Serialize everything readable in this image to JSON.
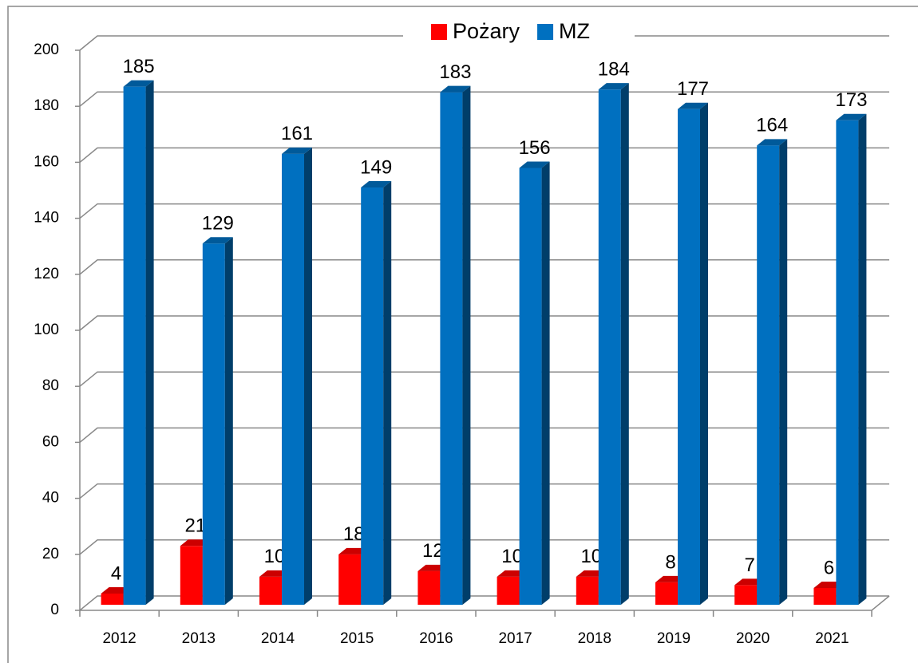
{
  "chart_data": {
    "type": "bar3d",
    "categories": [
      "2012",
      "2013",
      "2014",
      "2015",
      "2016",
      "2017",
      "2018",
      "2019",
      "2020",
      "2021"
    ],
    "series": [
      {
        "name": "Pożary",
        "color": "#ff0000",
        "values": [
          4,
          21,
          10,
          18,
          12,
          10,
          10,
          8,
          7,
          6
        ]
      },
      {
        "name": "MZ",
        "color": "#0070c0",
        "values": [
          185,
          129,
          161,
          149,
          183,
          156,
          184,
          177,
          164,
          173
        ]
      }
    ],
    "ylim": [
      0,
      200
    ],
    "yticks": [
      0,
      20,
      40,
      60,
      80,
      100,
      120,
      140,
      160,
      180,
      200
    ],
    "grid": true,
    "legend": "top"
  }
}
